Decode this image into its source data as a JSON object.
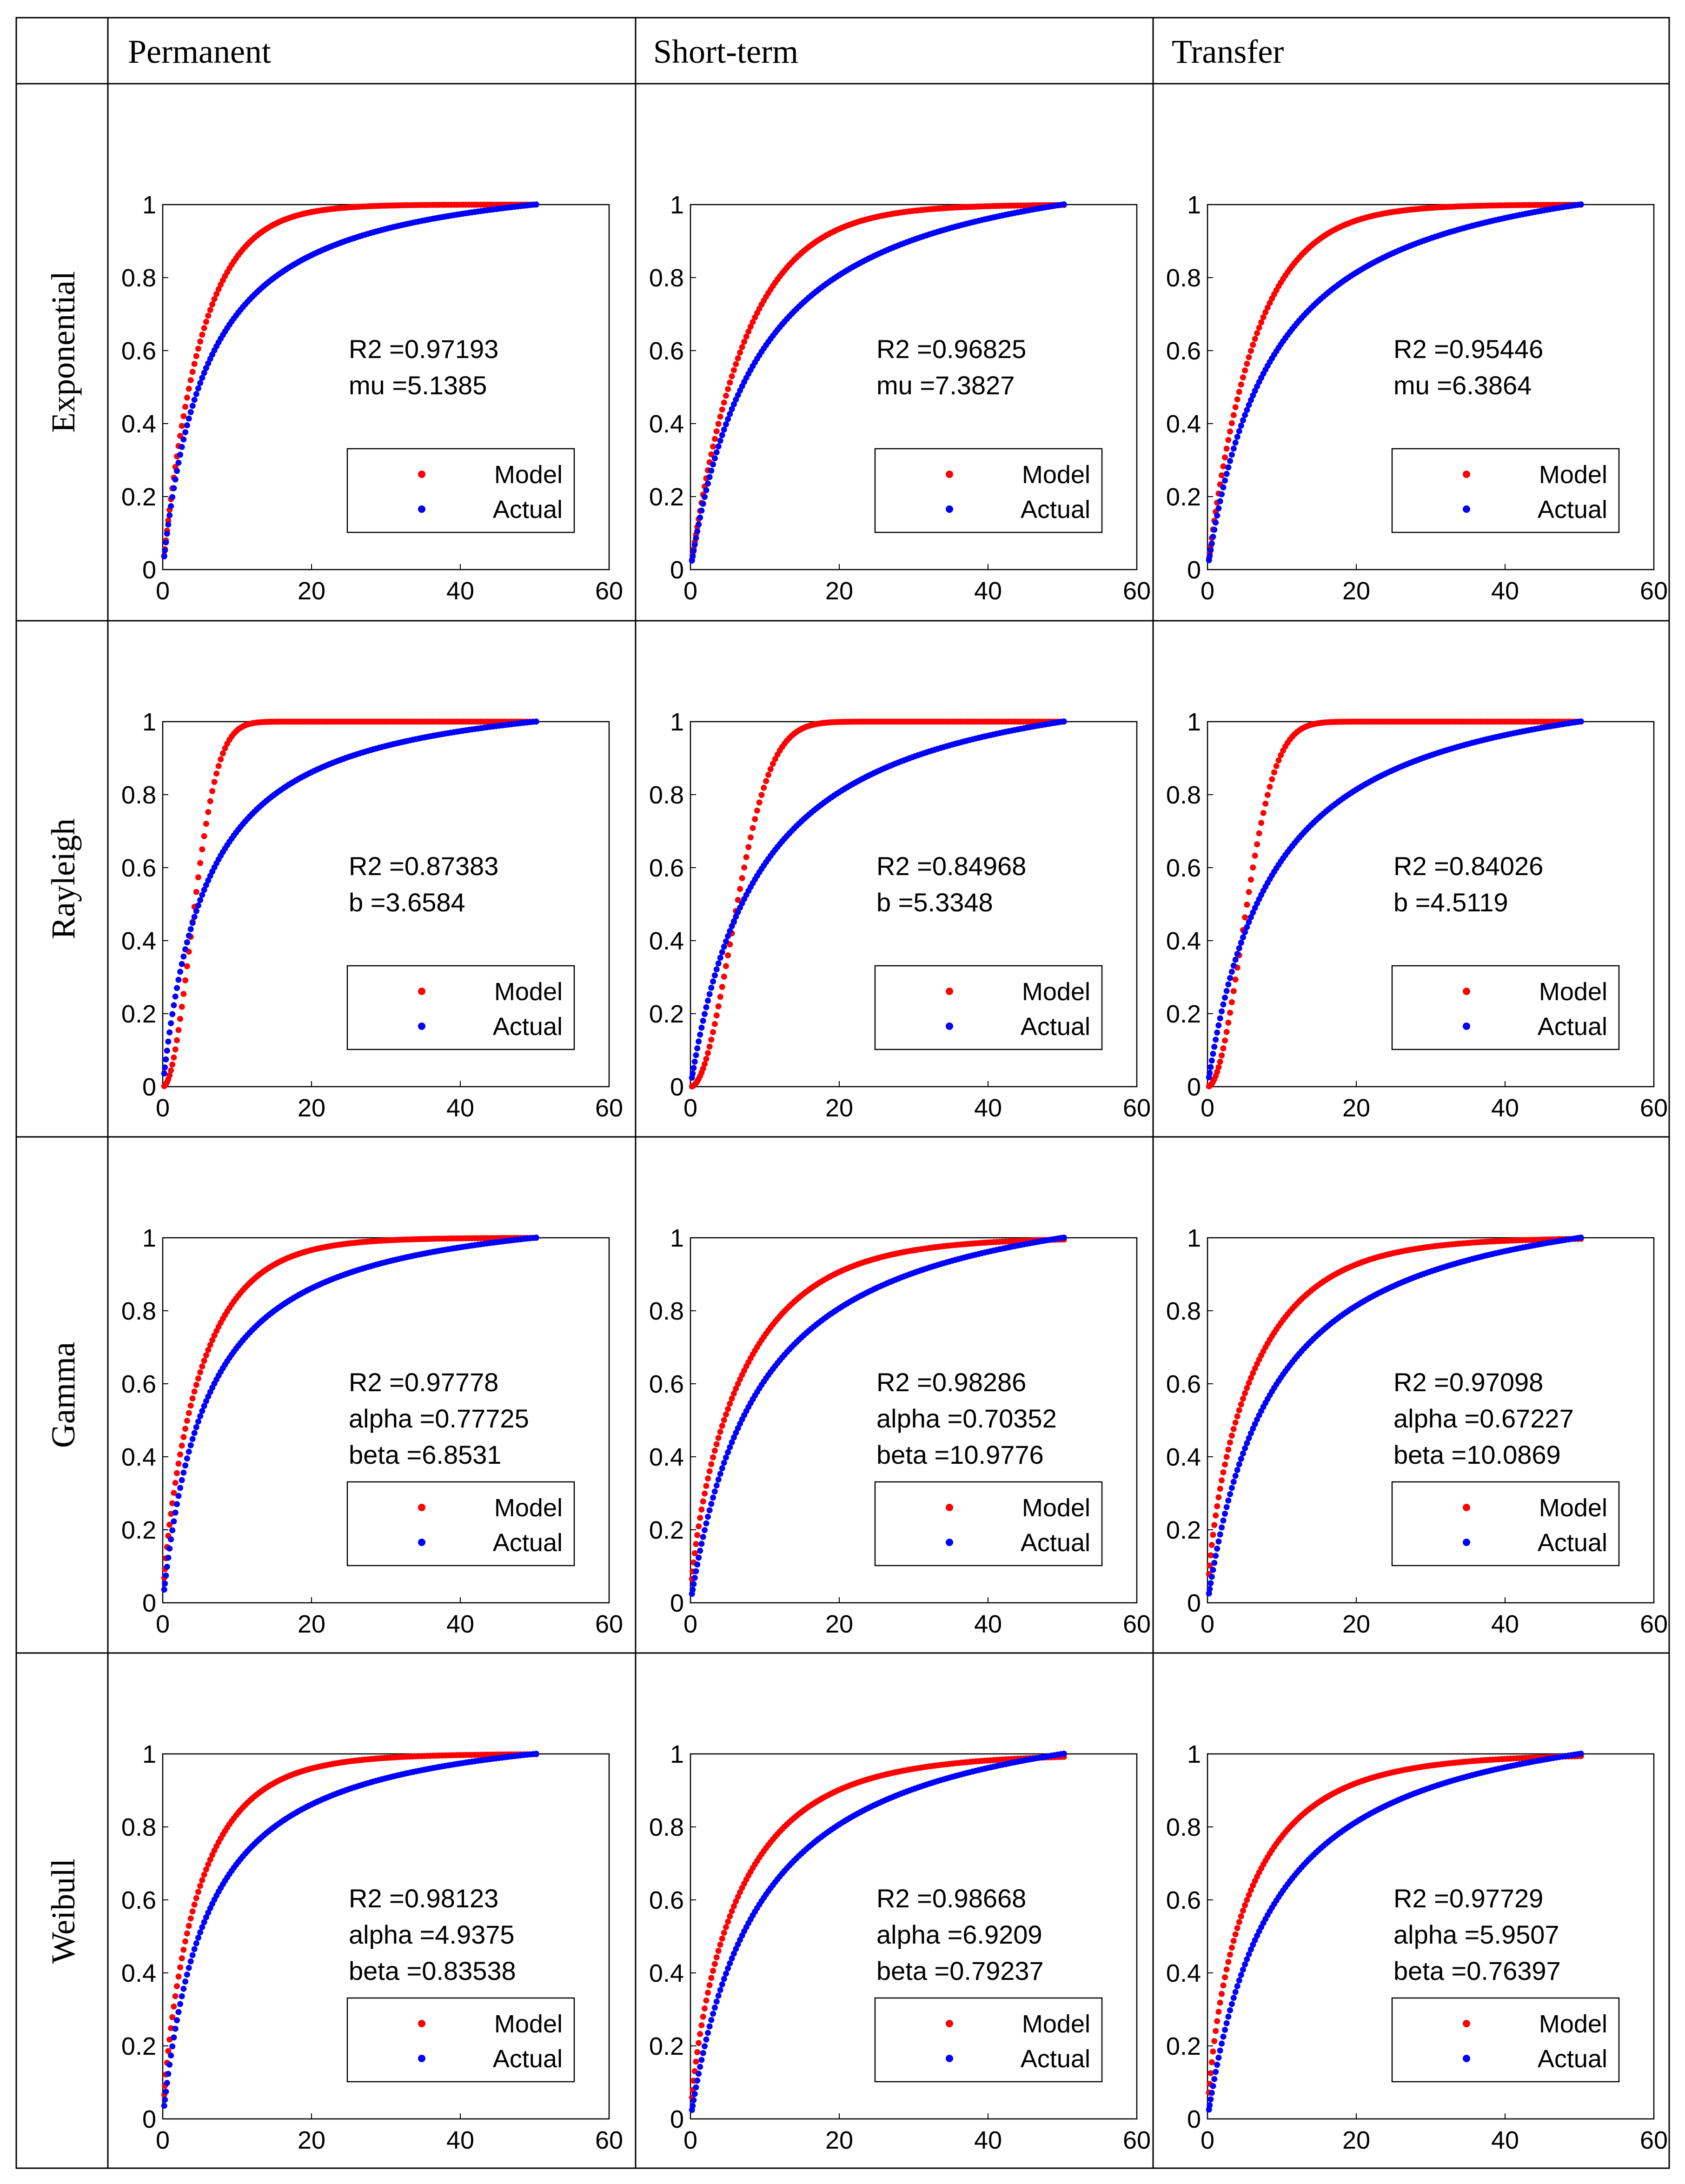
{
  "header": {
    "columns": [
      "Permanent",
      "Short-term",
      "Transfer"
    ]
  },
  "rows": [
    "Exponential",
    "Rayleigh",
    "Gamma",
    "Weibull"
  ],
  "legend": {
    "model_label": "Model",
    "actual_label": "Actual"
  },
  "colors": {
    "model": "#ff0000",
    "actual": "#0000ff",
    "grid": "#000000"
  },
  "axes": {
    "xlim": [
      0,
      60
    ],
    "ylim": [
      0,
      1
    ],
    "xticks": [
      "0",
      "20",
      "40",
      "60"
    ],
    "yticks": [
      "0",
      "0.2",
      "0.4",
      "0.6",
      "0.8",
      "1"
    ]
  },
  "chart_data": [
    {
      "type": "scatter",
      "row": "Exponential",
      "column": "Permanent",
      "dist": "exp",
      "params": {
        "mu": 5.1385
      },
      "stats": [
        "R2 =0.97193",
        "mu =5.1385"
      ],
      "series": [
        {
          "name": "Model"
        },
        {
          "name": "Actual"
        }
      ],
      "xlim": [
        0,
        60
      ],
      "ylim": [
        0,
        1
      ],
      "x_range": [
        0,
        50
      ]
    },
    {
      "type": "scatter",
      "row": "Exponential",
      "column": "Short-term",
      "dist": "exp",
      "params": {
        "mu": 7.3827
      },
      "stats": [
        "R2 =0.96825",
        "mu =7.3827"
      ],
      "series": [
        {
          "name": "Model"
        },
        {
          "name": "Actual"
        }
      ],
      "xlim": [
        0,
        60
      ],
      "ylim": [
        0,
        1
      ],
      "x_range": [
        0,
        50
      ]
    },
    {
      "type": "scatter",
      "row": "Exponential",
      "column": "Transfer",
      "dist": "exp",
      "params": {
        "mu": 6.3864
      },
      "stats": [
        "R2 =0.95446",
        "mu =6.3864"
      ],
      "series": [
        {
          "name": "Model"
        },
        {
          "name": "Actual"
        }
      ],
      "xlim": [
        0,
        60
      ],
      "ylim": [
        0,
        1
      ],
      "x_range": [
        0,
        50
      ]
    },
    {
      "type": "scatter",
      "row": "Rayleigh",
      "column": "Permanent",
      "dist": "rayleigh",
      "params": {
        "b": 3.6584
      },
      "stats": [
        "R2 =0.87383",
        "b =3.6584"
      ],
      "series": [
        {
          "name": "Model"
        },
        {
          "name": "Actual"
        }
      ],
      "xlim": [
        0,
        60
      ],
      "ylim": [
        0,
        1
      ],
      "x_range": [
        0,
        50
      ]
    },
    {
      "type": "scatter",
      "row": "Rayleigh",
      "column": "Short-term",
      "dist": "rayleigh",
      "params": {
        "b": 5.3348
      },
      "stats": [
        "R2 =0.84968",
        "b =5.3348"
      ],
      "series": [
        {
          "name": "Model"
        },
        {
          "name": "Actual"
        }
      ],
      "xlim": [
        0,
        60
      ],
      "ylim": [
        0,
        1
      ],
      "x_range": [
        0,
        50
      ]
    },
    {
      "type": "scatter",
      "row": "Rayleigh",
      "column": "Transfer",
      "dist": "rayleigh",
      "params": {
        "b": 4.5119
      },
      "stats": [
        "R2 =0.84026",
        "b =4.5119"
      ],
      "series": [
        {
          "name": "Model"
        },
        {
          "name": "Actual"
        }
      ],
      "xlim": [
        0,
        60
      ],
      "ylim": [
        0,
        1
      ],
      "x_range": [
        0,
        50
      ]
    },
    {
      "type": "scatter",
      "row": "Gamma",
      "column": "Permanent",
      "dist": "gamma",
      "params": {
        "alpha": 0.77725,
        "beta": 6.8531
      },
      "stats": [
        "R2 =0.97778",
        "alpha =0.77725",
        "beta =6.8531"
      ],
      "series": [
        {
          "name": "Model"
        },
        {
          "name": "Actual"
        }
      ],
      "xlim": [
        0,
        60
      ],
      "ylim": [
        0,
        1
      ],
      "x_range": [
        0,
        50
      ]
    },
    {
      "type": "scatter",
      "row": "Gamma",
      "column": "Short-term",
      "dist": "gamma",
      "params": {
        "alpha": 0.70352,
        "beta": 10.9776
      },
      "stats": [
        "R2 =0.98286",
        "alpha =0.70352",
        "beta =10.9776"
      ],
      "series": [
        {
          "name": "Model"
        },
        {
          "name": "Actual"
        }
      ],
      "xlim": [
        0,
        60
      ],
      "ylim": [
        0,
        1
      ],
      "x_range": [
        0,
        50
      ]
    },
    {
      "type": "scatter",
      "row": "Gamma",
      "column": "Transfer",
      "dist": "gamma",
      "params": {
        "alpha": 0.67227,
        "beta": 10.0869
      },
      "stats": [
        "R2 =0.97098",
        "alpha =0.67227",
        "beta =10.0869"
      ],
      "series": [
        {
          "name": "Model"
        },
        {
          "name": "Actual"
        }
      ],
      "xlim": [
        0,
        60
      ],
      "ylim": [
        0,
        1
      ],
      "x_range": [
        0,
        50
      ]
    },
    {
      "type": "scatter",
      "row": "Weibull",
      "column": "Permanent",
      "dist": "weibull",
      "params": {
        "alpha": 4.9375,
        "beta": 0.83538
      },
      "stats": [
        "R2 =0.98123",
        "alpha =4.9375",
        "beta =0.83538"
      ],
      "series": [
        {
          "name": "Model"
        },
        {
          "name": "Actual"
        }
      ],
      "xlim": [
        0,
        60
      ],
      "ylim": [
        0,
        1
      ],
      "x_range": [
        0,
        50
      ]
    },
    {
      "type": "scatter",
      "row": "Weibull",
      "column": "Short-term",
      "dist": "weibull",
      "params": {
        "alpha": 6.9209,
        "beta": 0.79237
      },
      "stats": [
        "R2 =0.98668",
        "alpha =6.9209",
        "beta =0.79237"
      ],
      "series": [
        {
          "name": "Model"
        },
        {
          "name": "Actual"
        }
      ],
      "xlim": [
        0,
        60
      ],
      "ylim": [
        0,
        1
      ],
      "x_range": [
        0,
        50
      ]
    },
    {
      "type": "scatter",
      "row": "Weibull",
      "column": "Transfer",
      "dist": "weibull",
      "params": {
        "alpha": 5.9507,
        "beta": 0.76397
      },
      "stats": [
        "R2 =0.97729",
        "alpha =5.9507",
        "beta =0.76397"
      ],
      "series": [
        {
          "name": "Model"
        },
        {
          "name": "Actual"
        }
      ],
      "xlim": [
        0,
        60
      ],
      "ylim": [
        0,
        1
      ],
      "x_range": [
        0,
        50
      ]
    }
  ]
}
